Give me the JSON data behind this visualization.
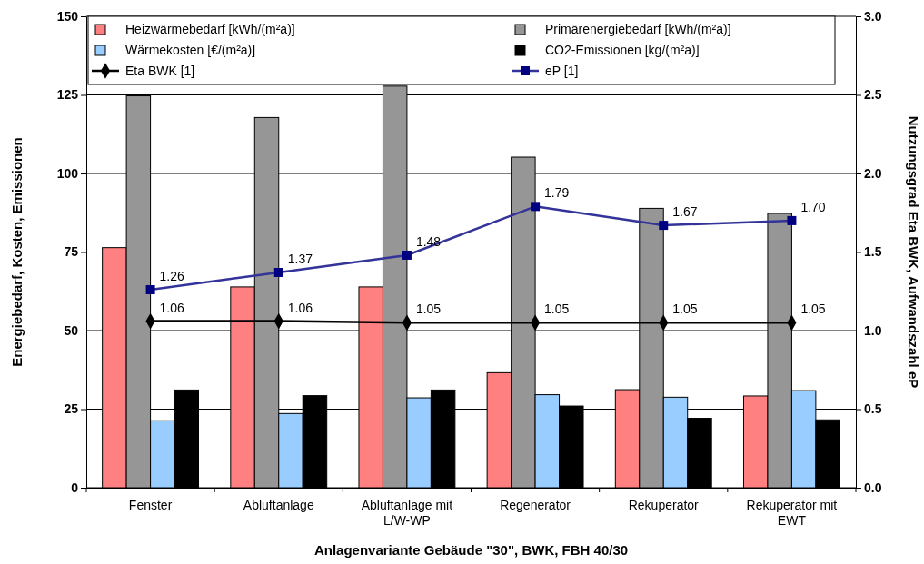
{
  "chart_data": {
    "type": "bar",
    "xlabel": "Anlagenvariante Gebäude \"30\", BWK, FBH 40/30",
    "ylabel": "Energiebedarf, Kosten, Emissionen",
    "y2label": "Nutzungsgrad Eta BWK, Aufwandszahl eP",
    "categories": [
      "Fenster",
      "Abluftanlage",
      "Abluftanlage mit L/W-WP",
      "Regenerator",
      "Rekuperator",
      "Rekuperator mit EWT"
    ],
    "ylim": [
      0,
      150
    ],
    "yticks": [
      0,
      25,
      50,
      75,
      100,
      125,
      150
    ],
    "y2lim": [
      0,
      3
    ],
    "y2ticks": [
      {
        "value": 0,
        "label": "0.0"
      },
      {
        "value": 0.5,
        "label": "0.5"
      },
      {
        "value": 1,
        "label": "1.0"
      },
      {
        "value": 1.5,
        "label": "1.5"
      },
      {
        "value": 2,
        "label": "2.0"
      },
      {
        "value": 2.5,
        "label": "2.5"
      },
      {
        "value": 3,
        "label": "3.0"
      }
    ],
    "grid": "y",
    "legend": "top",
    "series": [
      {
        "name": "Heizwärmebedarf [kWh/(m²a)]",
        "color": "#ff8080",
        "values": [
          76.4,
          63.9,
          63.9,
          36.6,
          31.2,
          29.2
        ]
      },
      {
        "name": "Primärenergiebedarf [kWh/(m²a)]",
        "color": "#969696",
        "values": [
          124.7,
          117.8,
          127.8,
          105.2,
          88.9,
          87.3
        ]
      },
      {
        "name": "Wärmekosten [€/(m²a)]",
        "color": "#99ccff",
        "values": [
          21.3,
          23.6,
          28.6,
          29.6,
          28.8,
          30.9
        ]
      },
      {
        "name": "CO2-Emissionen [kg/(m²a)]",
        "color": "#000000",
        "values": [
          31.1,
          29.3,
          31.1,
          26.0,
          22.1,
          21.6
        ]
      },
      {
        "name": "Eta BWK [1]",
        "type": "line",
        "axis": "y2",
        "marker": "diamond",
        "color": "#000000",
        "values": [
          1.06,
          1.06,
          1.05,
          1.05,
          1.05,
          1.05
        ],
        "value_labels": [
          "1.06",
          "1.06",
          "1.05",
          "1.05",
          "1.05",
          "1.05"
        ]
      },
      {
        "name": "eP [1]",
        "type": "line",
        "axis": "y2",
        "marker": "square",
        "color": "#333399",
        "values": [
          1.26,
          1.37,
          1.48,
          1.79,
          1.67,
          1.7
        ],
        "value_labels": [
          "1.26",
          "1.37",
          "1.48",
          "1.79",
          "1.67",
          "1.70"
        ]
      }
    ]
  }
}
